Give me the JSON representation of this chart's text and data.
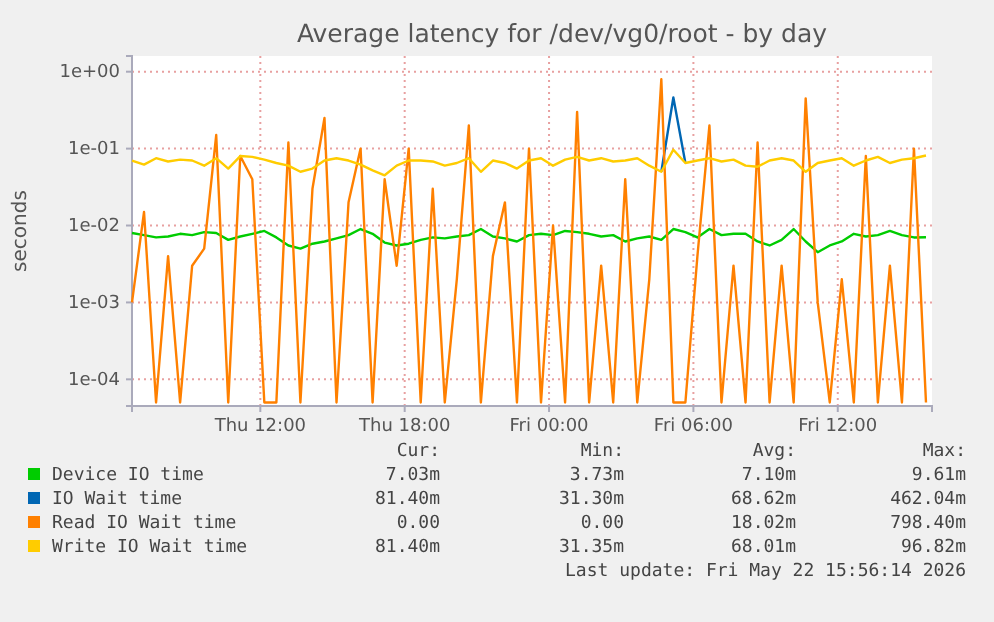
{
  "chart_data": {
    "type": "line",
    "title": "Average latency for /dev/vg0/root - by day",
    "ylabel": "seconds",
    "log": "y",
    "grid": true,
    "legend": "bottom",
    "xlim": [
      "2026-05-21T06:40",
      "2026-05-22T15:55"
    ],
    "xticks": [
      {
        "value": "2026-05-21T12:00",
        "label": "Thu 12:00"
      },
      {
        "value": "2026-05-21T18:00",
        "label": "Thu 18:00"
      },
      {
        "value": "2026-05-22T00:00",
        "label": "Fri 00:00"
      },
      {
        "value": "2026-05-22T06:00",
        "label": "Fri 06:00"
      },
      {
        "value": "2026-05-22T12:00",
        "label": "Fri 12:00"
      }
    ],
    "ylim": [
      4.5e-05,
      1.6
    ],
    "yticks": [
      {
        "value": 1,
        "label": "1e+00"
      },
      {
        "value": 0.1,
        "label": "1e-01"
      },
      {
        "value": 0.01,
        "label": "1e-02"
      },
      {
        "value": 0.001,
        "label": "1e-03"
      },
      {
        "value": 0.0001,
        "label": "1e-04"
      }
    ],
    "x": [
      "2026-05-21T06:40",
      "2026-05-21T07:10",
      "2026-05-21T07:40",
      "2026-05-21T08:10",
      "2026-05-21T08:40",
      "2026-05-21T09:10",
      "2026-05-21T09:40",
      "2026-05-21T10:10",
      "2026-05-21T10:40",
      "2026-05-21T11:10",
      "2026-05-21T11:40",
      "2026-05-21T12:10",
      "2026-05-21T12:40",
      "2026-05-21T13:10",
      "2026-05-21T13:40",
      "2026-05-21T14:10",
      "2026-05-21T14:40",
      "2026-05-21T15:10",
      "2026-05-21T15:40",
      "2026-05-21T16:10",
      "2026-05-21T16:40",
      "2026-05-21T17:10",
      "2026-05-21T17:40",
      "2026-05-21T18:10",
      "2026-05-21T18:40",
      "2026-05-21T19:10",
      "2026-05-21T19:40",
      "2026-05-21T20:10",
      "2026-05-21T20:40",
      "2026-05-21T21:10",
      "2026-05-21T21:40",
      "2026-05-21T22:10",
      "2026-05-21T22:40",
      "2026-05-21T23:10",
      "2026-05-21T23:40",
      "2026-05-22T00:10",
      "2026-05-22T00:40",
      "2026-05-22T01:10",
      "2026-05-22T01:40",
      "2026-05-22T02:10",
      "2026-05-22T02:40",
      "2026-05-22T03:10",
      "2026-05-22T03:40",
      "2026-05-22T04:10",
      "2026-05-22T04:40",
      "2026-05-22T05:10",
      "2026-05-22T05:40",
      "2026-05-22T06:10",
      "2026-05-22T06:40",
      "2026-05-22T07:10",
      "2026-05-22T07:40",
      "2026-05-22T08:10",
      "2026-05-22T08:40",
      "2026-05-22T09:10",
      "2026-05-22T09:40",
      "2026-05-22T10:10",
      "2026-05-22T10:40",
      "2026-05-22T11:10",
      "2026-05-22T11:40",
      "2026-05-22T12:10",
      "2026-05-22T12:40",
      "2026-05-22T13:10",
      "2026-05-22T13:40",
      "2026-05-22T14:10",
      "2026-05-22T14:40",
      "2026-05-22T15:10",
      "2026-05-22T15:40"
    ],
    "series": [
      {
        "name": "Device IO time",
        "color": "#00cc00",
        "values": [
          0.008,
          0.0075,
          0.007,
          0.0072,
          0.0078,
          0.0075,
          0.0082,
          0.008,
          0.0065,
          0.0072,
          0.0078,
          0.0085,
          0.007,
          0.0055,
          0.005,
          0.0058,
          0.0062,
          0.0068,
          0.0075,
          0.009,
          0.0078,
          0.006,
          0.0055,
          0.0058,
          0.0065,
          0.007,
          0.0068,
          0.0072,
          0.0075,
          0.009,
          0.0072,
          0.0068,
          0.0062,
          0.0075,
          0.0078,
          0.0075,
          0.0085,
          0.0082,
          0.0078,
          0.0072,
          0.0075,
          0.0062,
          0.0068,
          0.0072,
          0.0065,
          0.009,
          0.0082,
          0.007,
          0.009,
          0.0075,
          0.0078,
          0.0078,
          0.0062,
          0.0055,
          0.0065,
          0.009,
          0.0062,
          0.0045,
          0.0055,
          0.0062,
          0.0078,
          0.0072,
          0.0075,
          0.0085,
          0.0075,
          0.007,
          0.00703
        ]
      },
      {
        "name": "IO Wait time",
        "color": "#0066b3",
        "values": [
          null,
          null,
          null,
          null,
          null,
          null,
          null,
          null,
          null,
          null,
          null,
          null,
          null,
          null,
          null,
          null,
          null,
          null,
          null,
          null,
          null,
          null,
          null,
          null,
          null,
          null,
          null,
          null,
          null,
          null,
          null,
          null,
          null,
          null,
          null,
          null,
          null,
          null,
          null,
          null,
          null,
          null,
          null,
          null,
          0.05,
          0.462,
          0.065,
          null,
          null,
          null,
          null,
          null,
          null,
          null,
          null,
          null,
          null,
          null,
          null,
          null,
          null,
          null,
          null,
          null,
          null,
          null,
          null
        ]
      },
      {
        "name": "Read IO Wait time",
        "color": "#ff8000",
        "values": [
          0.001,
          0.015,
          5e-05,
          0.004,
          5e-05,
          0.003,
          0.005,
          0.15,
          5e-05,
          0.08,
          0.04,
          5e-05,
          5e-05,
          0.12,
          5e-05,
          0.03,
          0.25,
          5e-05,
          0.02,
          0.1,
          5e-05,
          0.04,
          0.003,
          0.1,
          5e-05,
          0.03,
          5e-05,
          0.002,
          0.2,
          5e-05,
          0.004,
          0.02,
          5e-05,
          0.1,
          5e-05,
          0.01,
          5e-05,
          0.3,
          5e-05,
          0.003,
          5e-05,
          0.04,
          5e-05,
          0.002,
          0.798,
          5e-05,
          5e-05,
          0.004,
          0.2,
          5e-05,
          0.003,
          5e-05,
          0.12,
          5e-05,
          0.003,
          5e-05,
          0.45,
          0.001,
          5e-05,
          0.002,
          5e-05,
          0.08,
          5e-05,
          0.003,
          5e-05,
          0.1,
          5e-05
        ]
      },
      {
        "name": "Write IO Wait time",
        "color": "#ffcc00",
        "values": [
          0.07,
          0.062,
          0.075,
          0.068,
          0.072,
          0.07,
          0.06,
          0.075,
          0.055,
          0.08,
          0.078,
          0.072,
          0.065,
          0.06,
          0.05,
          0.055,
          0.07,
          0.075,
          0.07,
          0.062,
          0.052,
          0.045,
          0.06,
          0.07,
          0.07,
          0.068,
          0.06,
          0.065,
          0.075,
          0.05,
          0.07,
          0.065,
          0.055,
          0.07,
          0.075,
          0.06,
          0.072,
          0.078,
          0.07,
          0.075,
          0.068,
          0.07,
          0.075,
          0.06,
          0.05,
          0.0968,
          0.065,
          0.07,
          0.075,
          0.068,
          0.072,
          0.06,
          0.058,
          0.07,
          0.075,
          0.07,
          0.05,
          0.065,
          0.07,
          0.075,
          0.06,
          0.07,
          0.078,
          0.065,
          0.072,
          0.075,
          0.0814
        ]
      }
    ],
    "annotations": [
      "Cur:",
      "Min:",
      "Avg:",
      "Max:",
      "7.03m",
      "3.73m",
      "7.10m",
      "9.61m",
      "81.40m",
      "31.30m",
      "68.62m",
      "462.04m",
      "0.00",
      "0.00",
      "18.02m",
      "798.40m",
      "81.40m",
      "31.35m",
      "68.01m",
      "96.82m",
      "Last update: Fri May 22 15:56:14 2026"
    ]
  }
}
